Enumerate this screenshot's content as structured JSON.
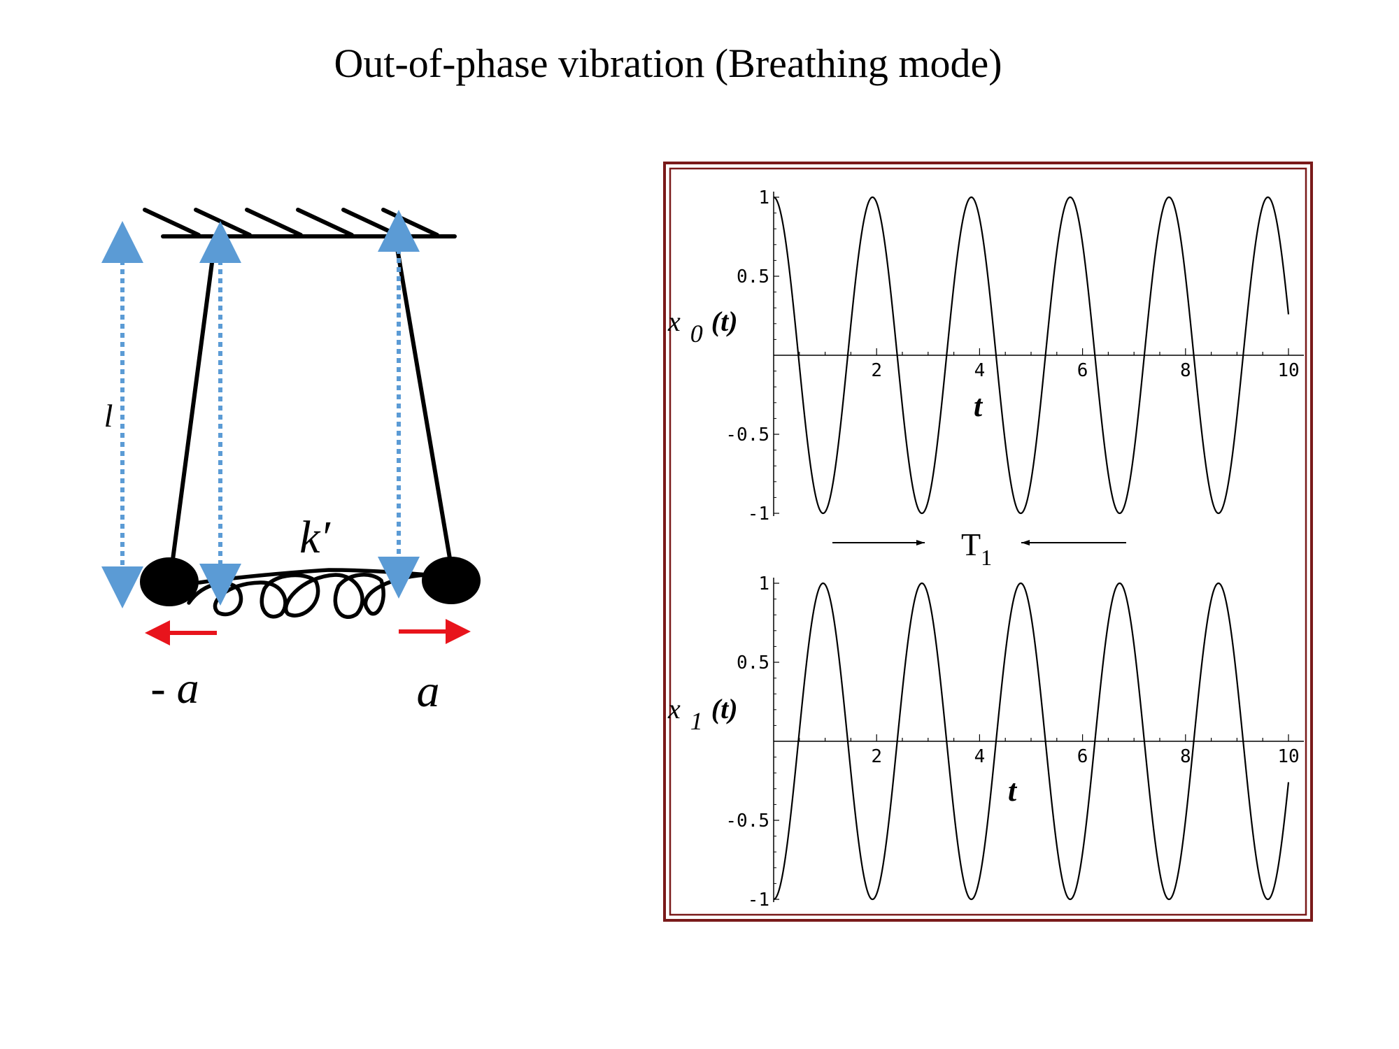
{
  "slide": {
    "title": "Out-of-phase vibration (Breathing mode)"
  },
  "pendulum_diagram": {
    "length_label": "l",
    "spring_label": "k′",
    "left_displacement_label": "- a",
    "right_displacement_label": "a",
    "colors": {
      "dimension_arrow": "#5b9bd5",
      "displacement_arrow": "#e8141c",
      "structure": "#000000"
    }
  },
  "chart_data": [
    {
      "type": "line",
      "name_key": "x0",
      "function": "cos(pi*t/0.96)",
      "period": 1.92,
      "phase": 0,
      "xlim": [
        0,
        10
      ],
      "ylim": [
        -1,
        1
      ],
      "x_ticks": [
        "2",
        "4",
        "6",
        "8",
        "10"
      ],
      "y_ticks": [
        "1",
        "0.5",
        "-0.5",
        "-1"
      ],
      "xlabel": "t",
      "ylabel_main": "x",
      "ylabel_sub": "0",
      "ylabel_arg": "(t)"
    },
    {
      "type": "line",
      "name_key": "x1",
      "function": "-cos(pi*t/0.96)",
      "period": 1.92,
      "phase": 3.14159,
      "xlim": [
        0,
        10
      ],
      "ylim": [
        -1,
        1
      ],
      "x_ticks": [
        "2",
        "4",
        "6",
        "8",
        "10"
      ],
      "y_ticks": [
        "1",
        "0.5",
        "-0.5",
        "-1"
      ],
      "xlabel": "t",
      "ylabel_main": "x",
      "ylabel_sub": "1",
      "ylabel_arg": "(t)"
    }
  ],
  "period_marker": {
    "label_main": "T",
    "label_sub": "1"
  },
  "frame": {
    "border_color": "#7a1a1a"
  }
}
